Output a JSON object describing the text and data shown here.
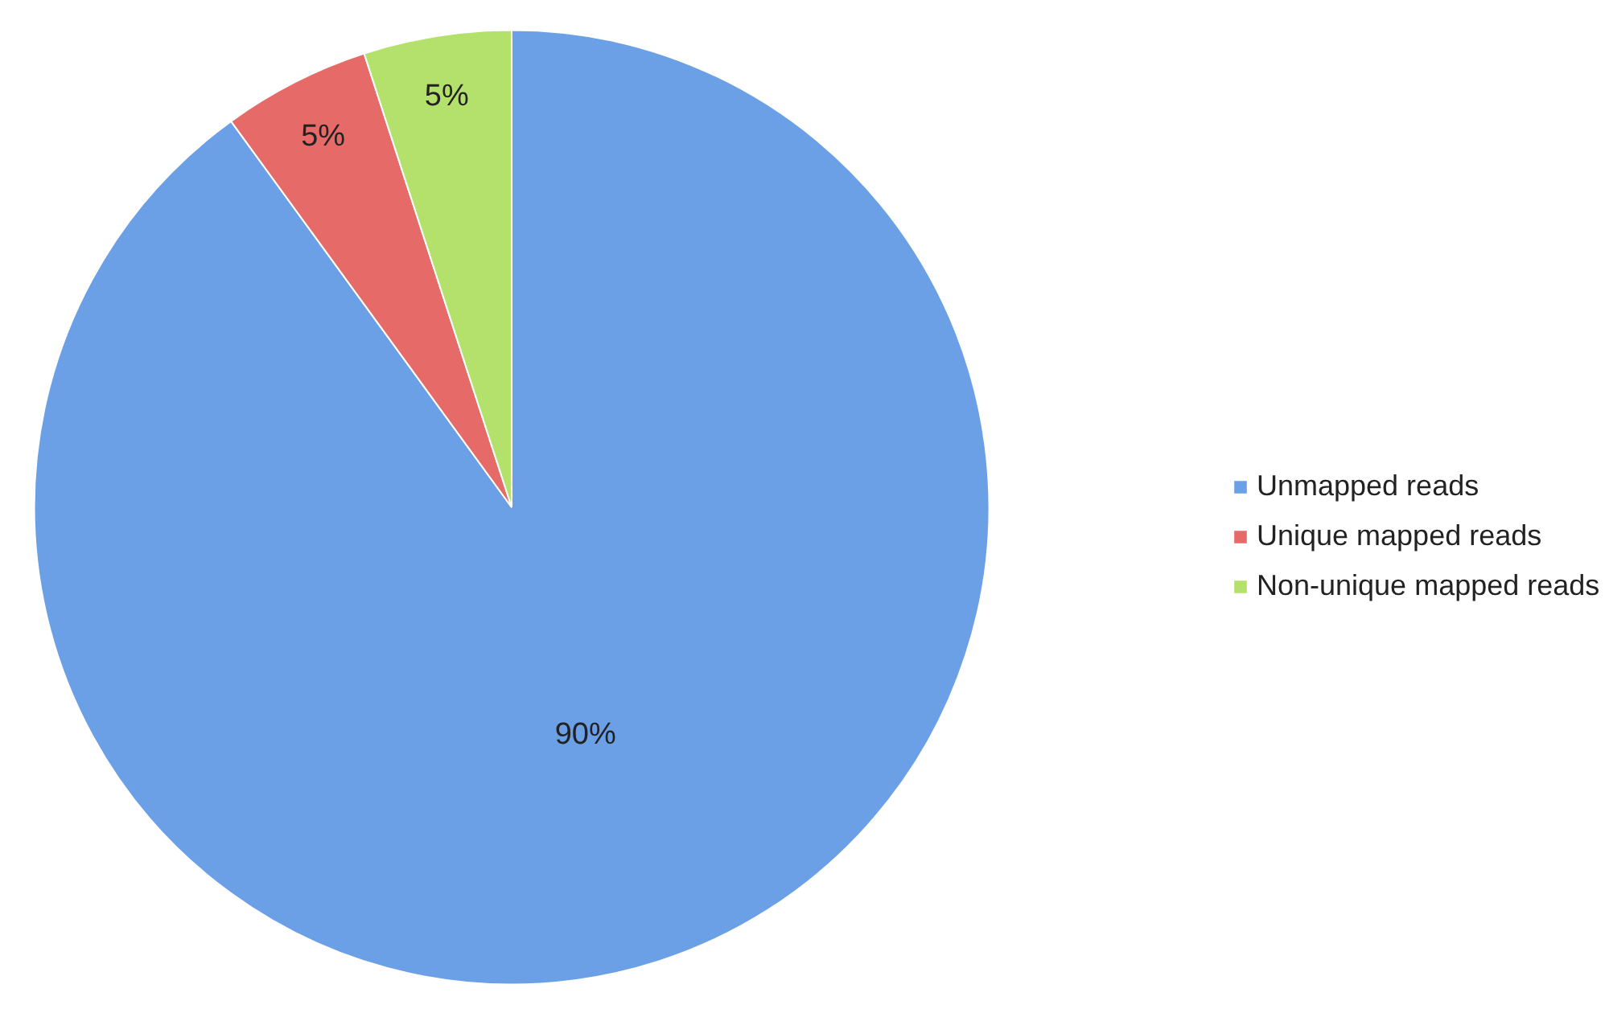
{
  "chart_data": {
    "type": "pie",
    "categories": [
      "Unmapped reads",
      "Unique mapped reads",
      "Non-unique mapped reads"
    ],
    "values": [
      90,
      5,
      5
    ],
    "colors": [
      "#6b9fe6",
      "#e56a68",
      "#b4e06c"
    ],
    "value_labels": [
      "90%",
      "5%",
      "5%"
    ],
    "legend": "right"
  }
}
